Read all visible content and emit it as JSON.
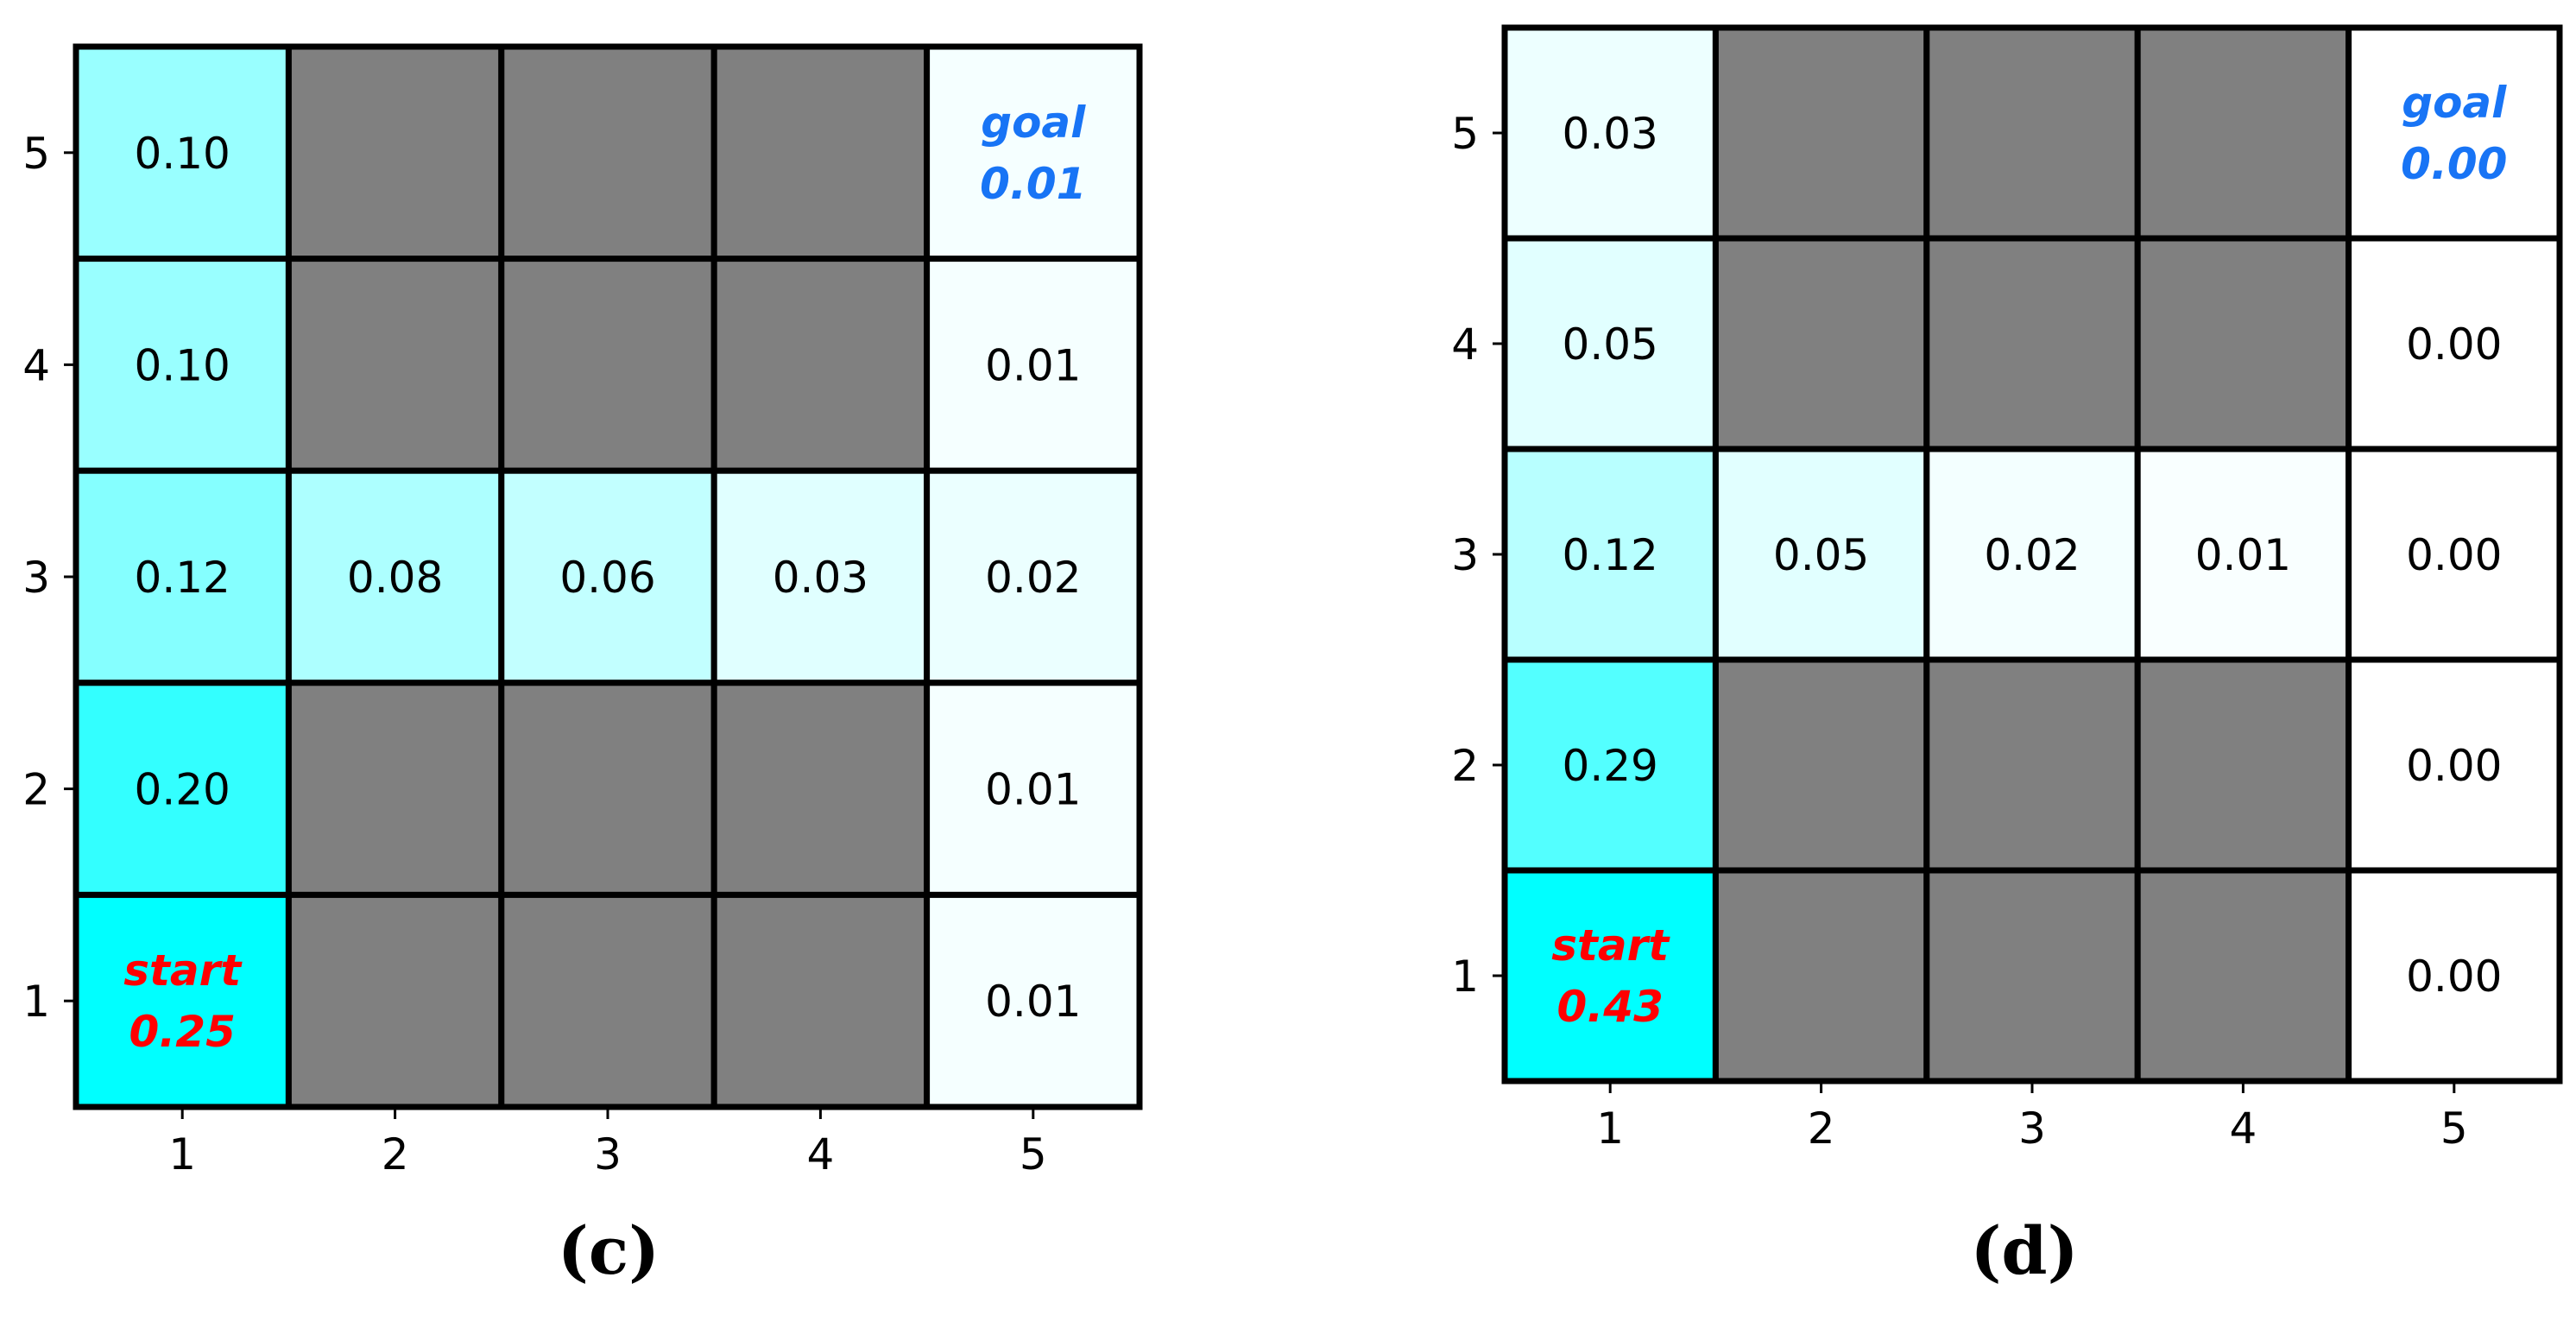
{
  "chart_data": [
    {
      "type": "heatmap",
      "panel_label": "(c)",
      "x": [
        1,
        2,
        3,
        4,
        5
      ],
      "y": [
        1,
        2,
        3,
        4,
        5
      ],
      "max_value": 0.25,
      "cells": [
        {
          "x": 1,
          "y": 5,
          "value": "0.10"
        },
        {
          "x": 2,
          "y": 5,
          "obstacle": true
        },
        {
          "x": 3,
          "y": 5,
          "obstacle": true
        },
        {
          "x": 4,
          "y": 5,
          "obstacle": true
        },
        {
          "x": 5,
          "y": 5,
          "value": "0.01",
          "label": "goal"
        },
        {
          "x": 1,
          "y": 4,
          "value": "0.10"
        },
        {
          "x": 2,
          "y": 4,
          "obstacle": true
        },
        {
          "x": 3,
          "y": 4,
          "obstacle": true
        },
        {
          "x": 4,
          "y": 4,
          "obstacle": true
        },
        {
          "x": 5,
          "y": 4,
          "value": "0.01"
        },
        {
          "x": 1,
          "y": 3,
          "value": "0.12"
        },
        {
          "x": 2,
          "y": 3,
          "value": "0.08"
        },
        {
          "x": 3,
          "y": 3,
          "value": "0.06"
        },
        {
          "x": 4,
          "y": 3,
          "value": "0.03"
        },
        {
          "x": 5,
          "y": 3,
          "value": "0.02"
        },
        {
          "x": 1,
          "y": 2,
          "value": "0.20"
        },
        {
          "x": 2,
          "y": 2,
          "obstacle": true
        },
        {
          "x": 3,
          "y": 2,
          "obstacle": true
        },
        {
          "x": 4,
          "y": 2,
          "obstacle": true
        },
        {
          "x": 5,
          "y": 2,
          "value": "0.01"
        },
        {
          "x": 1,
          "y": 1,
          "value": "0.25",
          "label": "start"
        },
        {
          "x": 2,
          "y": 1,
          "obstacle": true
        },
        {
          "x": 3,
          "y": 1,
          "obstacle": true
        },
        {
          "x": 4,
          "y": 1,
          "obstacle": true
        },
        {
          "x": 5,
          "y": 1,
          "value": "0.01"
        }
      ]
    },
    {
      "type": "heatmap",
      "panel_label": "(d)",
      "x": [
        1,
        2,
        3,
        4,
        5
      ],
      "y": [
        1,
        2,
        3,
        4,
        5
      ],
      "max_value": 0.43,
      "cells": [
        {
          "x": 1,
          "y": 5,
          "value": "0.03"
        },
        {
          "x": 2,
          "y": 5,
          "obstacle": true
        },
        {
          "x": 3,
          "y": 5,
          "obstacle": true
        },
        {
          "x": 4,
          "y": 5,
          "obstacle": true
        },
        {
          "x": 5,
          "y": 5,
          "value": "0.00",
          "label": "goal"
        },
        {
          "x": 1,
          "y": 4,
          "value": "0.05"
        },
        {
          "x": 2,
          "y": 4,
          "obstacle": true
        },
        {
          "x": 3,
          "y": 4,
          "obstacle": true
        },
        {
          "x": 4,
          "y": 4,
          "obstacle": true
        },
        {
          "x": 5,
          "y": 4,
          "value": "0.00"
        },
        {
          "x": 1,
          "y": 3,
          "value": "0.12"
        },
        {
          "x": 2,
          "y": 3,
          "value": "0.05"
        },
        {
          "x": 3,
          "y": 3,
          "value": "0.02"
        },
        {
          "x": 4,
          "y": 3,
          "value": "0.01"
        },
        {
          "x": 5,
          "y": 3,
          "value": "0.00"
        },
        {
          "x": 1,
          "y": 2,
          "value": "0.29"
        },
        {
          "x": 2,
          "y": 2,
          "obstacle": true
        },
        {
          "x": 3,
          "y": 2,
          "obstacle": true
        },
        {
          "x": 4,
          "y": 2,
          "obstacle": true
        },
        {
          "x": 5,
          "y": 2,
          "value": "0.00"
        },
        {
          "x": 1,
          "y": 1,
          "value": "0.43",
          "label": "start"
        },
        {
          "x": 2,
          "y": 1,
          "obstacle": true
        },
        {
          "x": 3,
          "y": 1,
          "obstacle": true
        },
        {
          "x": 4,
          "y": 1,
          "obstacle": true
        },
        {
          "x": 5,
          "y": 1,
          "value": "0.00"
        }
      ]
    }
  ],
  "colors": {
    "obstacle": "#808080",
    "cell_max": "#00ffff",
    "cell_min": "#ffffff",
    "start_text": "#ff0000",
    "goal_text": "#1874f5",
    "value_text": "#000000",
    "grid_line": "#000000"
  }
}
